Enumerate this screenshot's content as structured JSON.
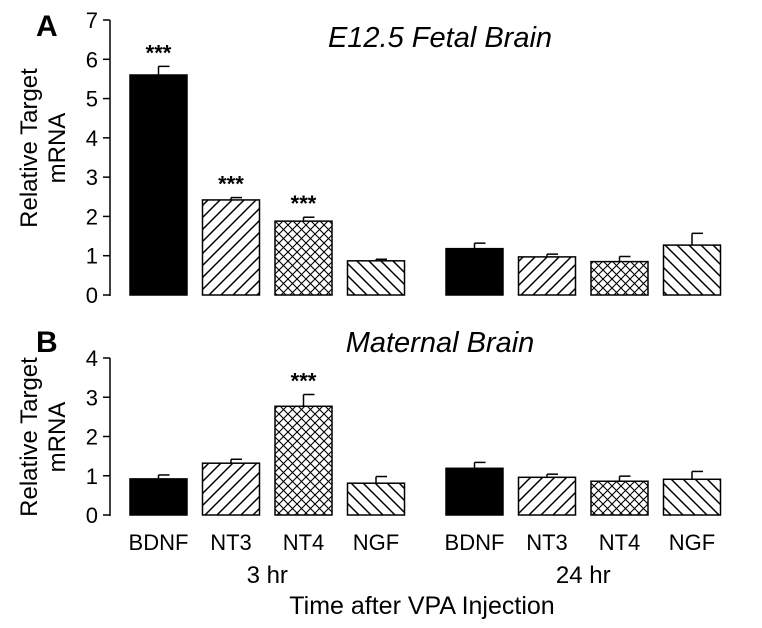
{
  "xlabel": "Time after VPA Injection",
  "chart_data": [
    {
      "type": "bar",
      "panel_label": "A",
      "title": "E12.5 Fetal Brain",
      "ylabel": "Relative Target mRNA",
      "ylim": [
        0,
        7
      ],
      "yticks": [
        "0",
        "1",
        "2",
        "3",
        "4",
        "5",
        "6",
        "7"
      ],
      "groups": [
        "3 hr",
        "24 hr"
      ],
      "categories": [
        "BDNF",
        "NT3",
        "NT4",
        "NGF"
      ],
      "series": [
        {
          "group": "3 hr",
          "values": [
            5.6,
            2.42,
            1.88,
            0.87
          ],
          "errors": [
            0.22,
            0.06,
            0.1,
            0.04
          ],
          "significance": [
            "***",
            "***",
            "***",
            ""
          ]
        },
        {
          "group": "24 hr",
          "values": [
            1.18,
            0.97,
            0.85,
            1.27
          ],
          "errors": [
            0.14,
            0.07,
            0.13,
            0.3
          ],
          "significance": [
            "",
            "",
            "",
            ""
          ]
        }
      ]
    },
    {
      "type": "bar",
      "panel_label": "B",
      "title": "Maternal Brain",
      "ylabel": "Relative Target mRNA",
      "ylim": [
        0,
        4
      ],
      "yticks": [
        "0",
        "1",
        "2",
        "3",
        "4"
      ],
      "groups": [
        "3 hr",
        "24 hr"
      ],
      "categories": [
        "BDNF",
        "NT3",
        "NT4",
        "NGF"
      ],
      "series": [
        {
          "group": "3 hr",
          "values": [
            0.92,
            1.32,
            2.77,
            0.81
          ],
          "errors": [
            0.1,
            0.1,
            0.3,
            0.17
          ],
          "significance": [
            "",
            "",
            "***",
            ""
          ]
        },
        {
          "group": "24 hr",
          "values": [
            1.19,
            0.96,
            0.86,
            0.91
          ],
          "errors": [
            0.15,
            0.08,
            0.13,
            0.2
          ],
          "significance": [
            "",
            "",
            "",
            ""
          ]
        }
      ]
    }
  ],
  "fills": {
    "BDNF": "solid-black",
    "NT3": "diagonal-hatch",
    "NT4": "cross-hatch",
    "NGF": "back-diagonal-hatch"
  }
}
